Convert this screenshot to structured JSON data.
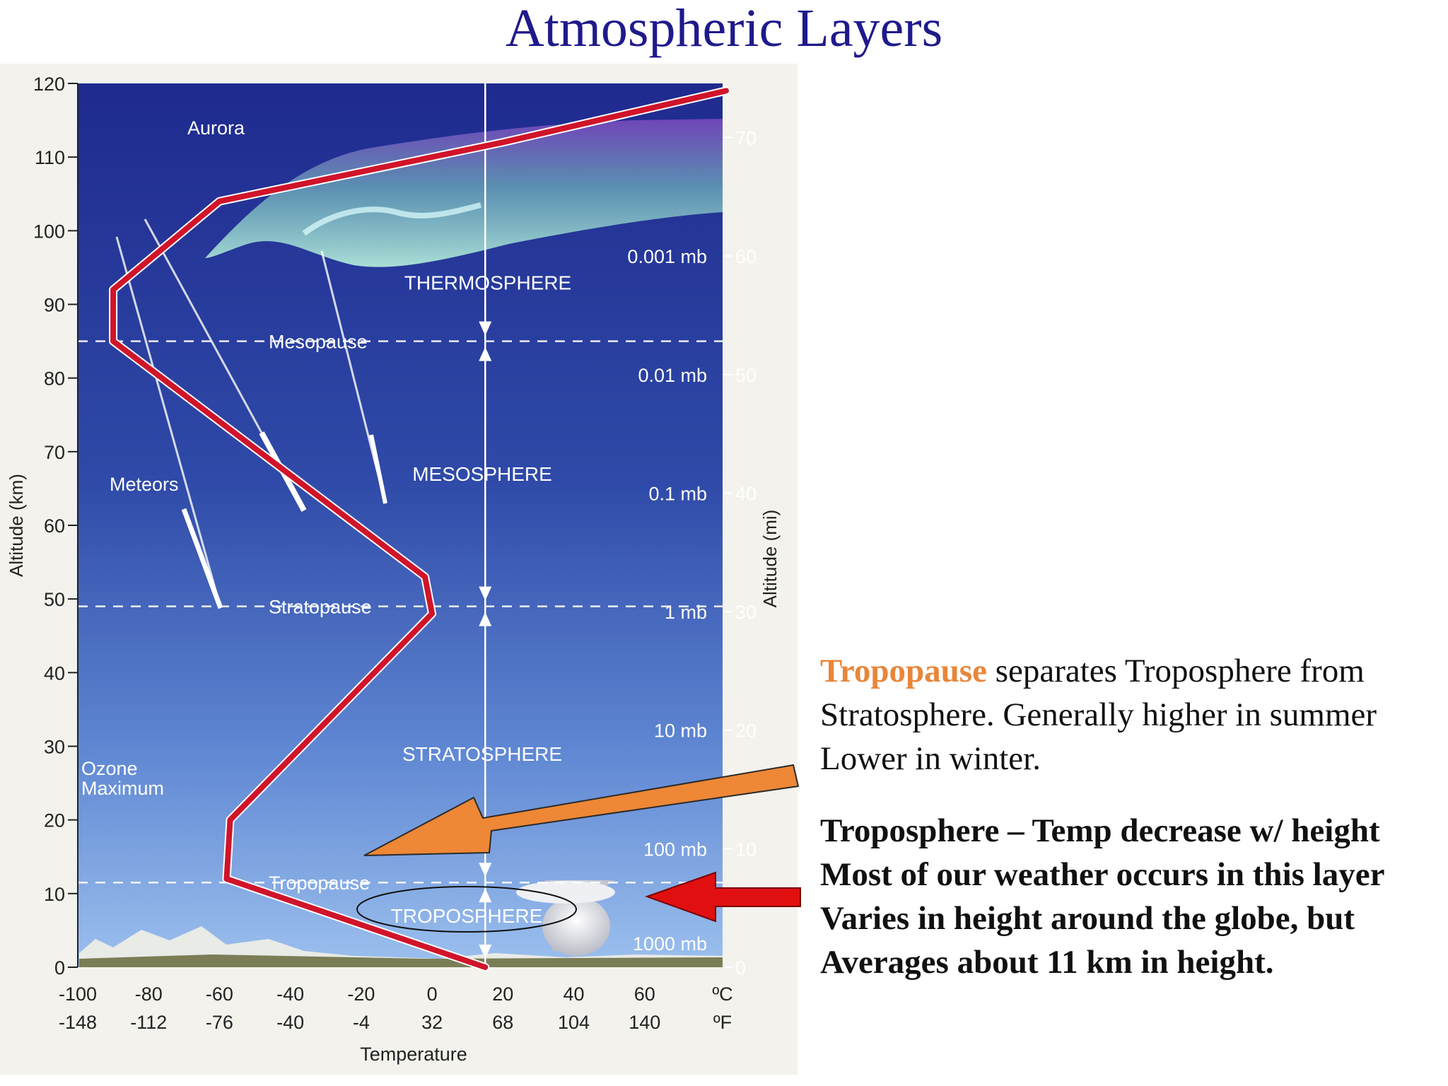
{
  "title": "Atmospheric Layers",
  "colors": {
    "title": "#1f1a8c",
    "sky_top": "#1f2a8e",
    "sky_bottom": "#93b9ea",
    "profile": "#d0142a",
    "highlight": "#e8863a",
    "orange_arrow": "#ee8736",
    "red_arrow": "#e01010"
  },
  "axes": {
    "altitude_km": {
      "label": "Altitude (km)",
      "range": [
        0,
        120
      ],
      "ticks": [
        "0",
        "10",
        "20",
        "30",
        "40",
        "50",
        "60",
        "70",
        "80",
        "90",
        "100",
        "110",
        "120"
      ]
    },
    "altitude_mi": {
      "label": "Altitude (mi)",
      "ticks": [
        "0",
        "10",
        "20",
        "30",
        "40",
        "50",
        "60",
        "70"
      ]
    },
    "temperature": {
      "label": "Temperature",
      "celsius_unit": "ºC",
      "fahrenheit_unit": "ºF",
      "celsius_ticks": [
        "-100",
        "-80",
        "-60",
        "-40",
        "-20",
        "0",
        "20",
        "40",
        "60"
      ],
      "fahrenheit_ticks": [
        "-148",
        "-112",
        "-76",
        "-40",
        "-4",
        "32",
        "68",
        "104",
        "140"
      ]
    },
    "pressure_labels": [
      "0.001 mb",
      "0.01 mb",
      "0.1 mb",
      "1 mb",
      "10 mb",
      "100 mb",
      "1000 mb"
    ]
  },
  "temperature_profile": [
    {
      "temp_c": 15,
      "alt_km": 0
    },
    {
      "temp_c": -58,
      "alt_km": 12
    },
    {
      "temp_c": -57,
      "alt_km": 20
    },
    {
      "temp_c": 0,
      "alt_km": 48
    },
    {
      "temp_c": -2,
      "alt_km": 53
    },
    {
      "temp_c": -90,
      "alt_km": 85
    },
    {
      "temp_c": -90,
      "alt_km": 92
    },
    {
      "temp_c": -60,
      "alt_km": 104
    },
    {
      "temp_c": 20,
      "alt_km": 112
    },
    {
      "temp_c": 83,
      "alt_km": 119
    }
  ],
  "boundaries": [
    {
      "name": "Mesopause",
      "alt_km": 85
    },
    {
      "name": "Stratopause",
      "alt_km": 49
    },
    {
      "name": "Tropopause",
      "alt_km": 11.5
    }
  ],
  "layers": [
    "THERMOSPHERE",
    "MESOSPHERE",
    "STRATOSPHERE",
    "TROPOSPHERE"
  ],
  "annotations": {
    "aurora": "Aurora",
    "meteors": "Meteors",
    "ozone_1": "Ozone",
    "ozone_2": "Maximum"
  },
  "info_tropopause": {
    "highlight": "Tropopause",
    "rest": " separates Troposphere from Stratosphere.  Generally higher in summer Lower in winter."
  },
  "info_troposphere": [
    "Troposphere – Temp decrease w/ height",
    "Most of our weather occurs in this layer",
    "Varies in height around the globe, but",
    "Averages about 11 km in height."
  ]
}
